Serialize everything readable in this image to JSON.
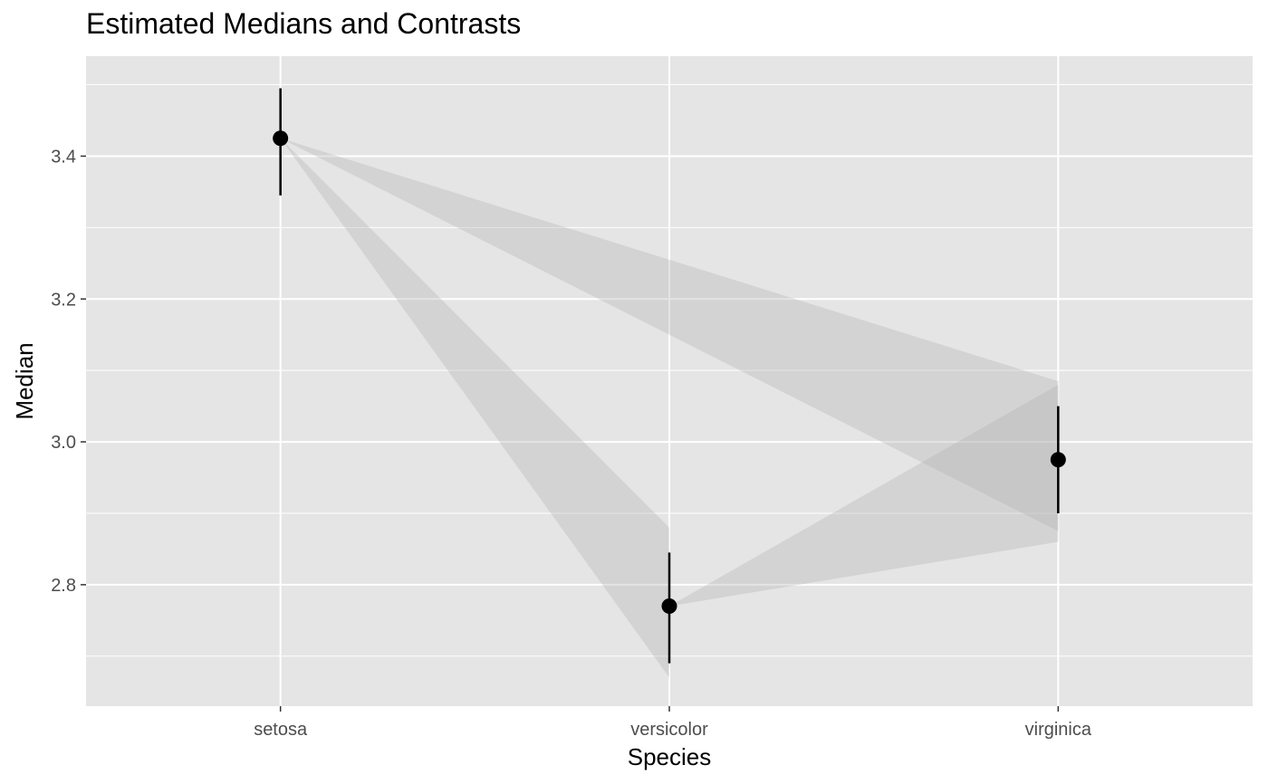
{
  "chart_data": {
    "type": "scatter",
    "title": "Estimated Medians and Contrasts",
    "xlabel": "Species",
    "ylabel": "Median",
    "categories": [
      "setosa",
      "versicolor",
      "virginica"
    ],
    "medians": [
      {
        "category": "setosa",
        "value": 3.425,
        "lower": 3.345,
        "upper": 3.495
      },
      {
        "category": "versicolor",
        "value": 2.77,
        "lower": 2.69,
        "upper": 2.845
      },
      {
        "category": "virginica",
        "value": 2.975,
        "lower": 2.9,
        "upper": 3.05
      }
    ],
    "contrasts": [
      {
        "from": "setosa",
        "to": "versicolor",
        "to_lower": 2.67,
        "to_upper": 2.88
      },
      {
        "from": "setosa",
        "to": "virginica",
        "to_lower": 2.875,
        "to_upper": 3.085
      },
      {
        "from": "versicolor",
        "to": "virginica",
        "to_lower": 2.86,
        "to_upper": 3.08
      }
    ],
    "ylim": [
      2.63,
      3.54
    ],
    "yticks": [
      2.8,
      3.0,
      3.2,
      3.4
    ],
    "ytick_labels": [
      "2.8",
      "3.0",
      "3.2",
      "3.4"
    ],
    "grid": true,
    "colors": {
      "panel": "#e5e5e5",
      "grid": "#ffffff",
      "band": "#b3b3b3",
      "point": "#000000"
    }
  }
}
